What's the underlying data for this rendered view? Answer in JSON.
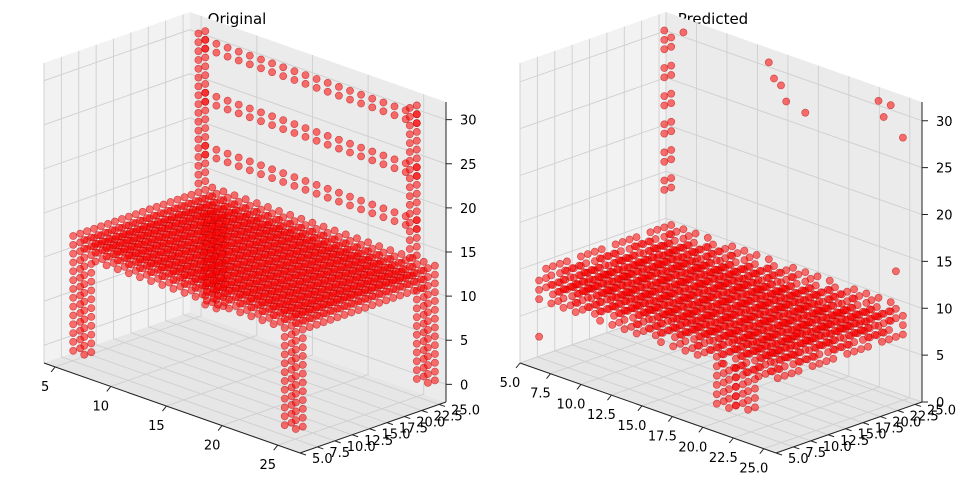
{
  "chart_data": [
    {
      "type": "scatter",
      "title": "Original",
      "xlabel": "",
      "ylabel": "",
      "zlabel": "",
      "grid": true,
      "marker_color": "#ff0000",
      "x_ticks": [
        "5",
        "10",
        "15",
        "20",
        "25"
      ],
      "y_ticks": [
        "5.0",
        "7.5",
        "10.0",
        "12.5",
        "15.0",
        "17.5",
        "20.0",
        "22.5",
        "25.0"
      ],
      "z_ticks": [
        "0",
        "5",
        "10",
        "15",
        "20",
        "25",
        "30"
      ],
      "xlim": [
        4,
        27
      ],
      "ylim": [
        5,
        26
      ],
      "zlim": [
        -2,
        32
      ],
      "shape": {
        "seat": {
          "x": [
            6,
            26
          ],
          "y": [
            6,
            26
          ],
          "z": [
            11,
            13
          ],
          "step": 1
        },
        "legs": [
          {
            "x": 6,
            "y": 6,
            "z": [
              0,
              10
            ]
          },
          {
            "x": 6,
            "y": 25,
            "z": [
              0,
              10
            ]
          },
          {
            "x": 25,
            "y": 6,
            "z": [
              0,
              10
            ]
          },
          {
            "x": 25,
            "y": 25,
            "z": [
              0,
              10
            ]
          }
        ],
        "back_posts": [
          {
            "x": 6,
            "y": 25,
            "z": [
              14,
              31
            ]
          },
          {
            "x": 25,
            "y": 25,
            "z": [
              14,
              31
            ]
          }
        ],
        "back_rails": {
          "y": 25,
          "x": [
            6,
            25
          ],
          "z": [
            30,
            24,
            18
          ]
        }
      }
    },
    {
      "type": "scatter",
      "title": "Predicted",
      "xlabel": "",
      "ylabel": "",
      "zlabel": "",
      "grid": true,
      "marker_color": "#ff0000",
      "x_ticks": [
        "5.0",
        "7.5",
        "10.0",
        "12.5",
        "15.0",
        "17.5",
        "20.0",
        "22.5",
        "25.0"
      ],
      "y_ticks": [
        "5.0",
        "7.5",
        "10.0",
        "12.5",
        "15.0",
        "17.5",
        "20.0",
        "22.5",
        "25.0"
      ],
      "z_ticks": [
        "0",
        "5",
        "10",
        "15",
        "20",
        "25",
        "30"
      ],
      "xlim": [
        5,
        26
      ],
      "ylim": [
        5,
        26
      ],
      "zlim": [
        0,
        32
      ],
      "shape": {
        "seat": {
          "x": [
            6,
            25
          ],
          "y": [
            6,
            25
          ],
          "z": [
            7,
            10
          ],
          "step": 1
        },
        "legs": [
          {
            "x": 20,
            "y": 7,
            "z": [
              2,
              6
            ]
          },
          {
            "x": 21,
            "y": 8,
            "z": [
              2,
              6
            ]
          }
        ],
        "back_posts": [
          {
            "x": 6,
            "y": 25,
            "z": [
              14,
              31
            ]
          }
        ],
        "outliers": [
          [
            14,
            25,
            31
          ],
          [
            15,
            24,
            30
          ],
          [
            15,
            25,
            29
          ],
          [
            16,
            24,
            28
          ],
          [
            17,
            25,
            27
          ],
          [
            23,
            25,
            31
          ],
          [
            24,
            24,
            30
          ],
          [
            24,
            25,
            31
          ],
          [
            25,
            25,
            28
          ],
          [
            25,
            24,
            14
          ],
          [
            7,
            25,
            31
          ],
          [
            6,
            24,
            31
          ],
          [
            26,
            8,
            12
          ],
          [
            6,
            6,
            3
          ]
        ]
      }
    }
  ]
}
